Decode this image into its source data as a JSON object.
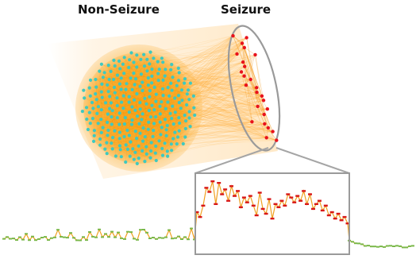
{
  "labels": {
    "non_seizure": "Non-Seizure",
    "seizure": "Seizure"
  },
  "colors": {
    "background": "#ffffff",
    "fan": "#ffa51e",
    "cluster_fill": "#f59a10",
    "normal_point": "#3ec9c0",
    "seizure_point": "#e8121c",
    "outline": "#9a9a9a",
    "trace_line": "#f0a020",
    "trace_normal_marker": "#7ab84a",
    "trace_seizure_marker": "#d81818"
  },
  "non_seizure_cluster": {
    "shape": "circle",
    "point_count": 260
  },
  "seizure_cluster": {
    "shape": "ellipse",
    "point_count": 25
  },
  "zoom_inset": {
    "source": "seizure-segment",
    "frame": "rectangle"
  },
  "trace": {
    "left_segment": "normal",
    "middle_segment": "seizure",
    "right_segment": "normal",
    "seizure_values": [
      0.52,
      0.46,
      0.6,
      0.82,
      0.77,
      0.9,
      0.62,
      0.88,
      0.74,
      0.8,
      0.66,
      0.84,
      0.72,
      0.78,
      0.58,
      0.7,
      0.64,
      0.72,
      0.6,
      0.48,
      0.76,
      0.56,
      0.5,
      0.68,
      0.44,
      0.62,
      0.58,
      0.66,
      0.6,
      0.74,
      0.7,
      0.64,
      0.72,
      0.66,
      0.78,
      0.62,
      0.74,
      0.56,
      0.62,
      0.66,
      0.54,
      0.6,
      0.48,
      0.52,
      0.44,
      0.5,
      0.42,
      0.46,
      0.38
    ]
  }
}
